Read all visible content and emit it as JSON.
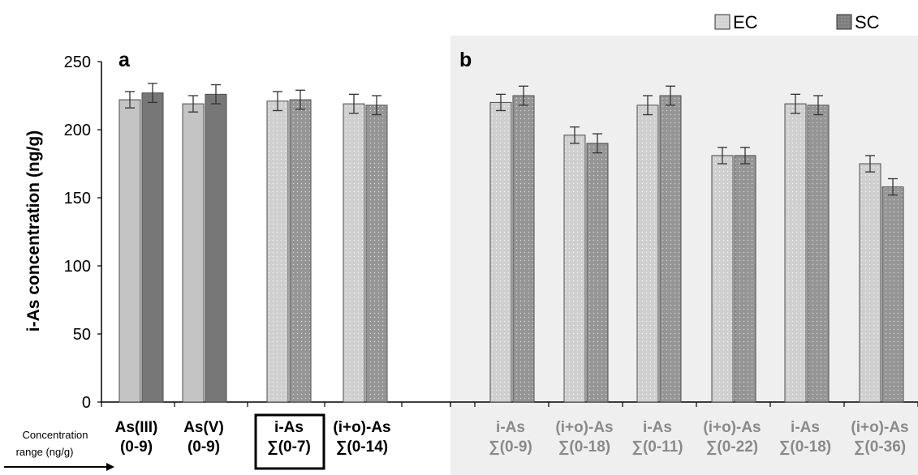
{
  "chart_data": {
    "type": "bar",
    "ylabel": "i-As concentration (ng/g)",
    "ylim": [
      0,
      250
    ],
    "yticks": [
      0,
      50,
      100,
      150,
      200,
      250
    ],
    "legend": [
      "EC",
      "SC"
    ],
    "legend_position": "top-right",
    "xaxis_note": [
      "Concentration",
      "range (ng/g)"
    ],
    "panels": [
      {
        "label": "a",
        "categories": [
          [
            "As(III)",
            "(0-9)"
          ],
          [
            "As(V)",
            "(0-9)"
          ],
          [
            "i-As",
            "∑(0-7)"
          ],
          [
            "(i+o)-As",
            "∑(0-14)"
          ]
        ],
        "highlighted_category": 2,
        "series": [
          {
            "name": "EC",
            "values": [
              222,
              219,
              221,
              219
            ],
            "errors": [
              6,
              6,
              7,
              7
            ]
          },
          {
            "name": "SC",
            "values": [
              227,
              226,
              222,
              218
            ],
            "errors": [
              7,
              7,
              7,
              7
            ]
          }
        ]
      },
      {
        "label": "b",
        "categories": [
          [
            "i-As",
            "∑(0-9)"
          ],
          [
            "(i+o)-As",
            "∑(0-18)"
          ],
          [
            "i-As",
            "∑(0-11)"
          ],
          [
            "(i+o)-As",
            "∑(0-22)"
          ],
          [
            "i-As",
            "∑(0-18)"
          ],
          [
            "(i+o)-As",
            "∑(0-36)"
          ]
        ],
        "series": [
          {
            "name": "EC",
            "values": [
              220,
              196,
              218,
              181,
              219,
              175
            ],
            "errors": [
              6,
              6,
              7,
              6,
              7,
              6
            ]
          },
          {
            "name": "SC",
            "values": [
              225,
              190,
              225,
              181,
              218,
              158
            ],
            "errors": [
              7,
              7,
              7,
              6,
              7,
              6
            ]
          }
        ]
      }
    ]
  },
  "colors": {
    "ec_solid": "#c4c4c4",
    "sc_solid": "#777777",
    "ec_dotted": "#cfcfcf",
    "sc_dotted": "#959595",
    "panel_b_bg": "#efefef",
    "bar_border": "#4d4d4d",
    "muted_text": "#8a8a8a"
  }
}
